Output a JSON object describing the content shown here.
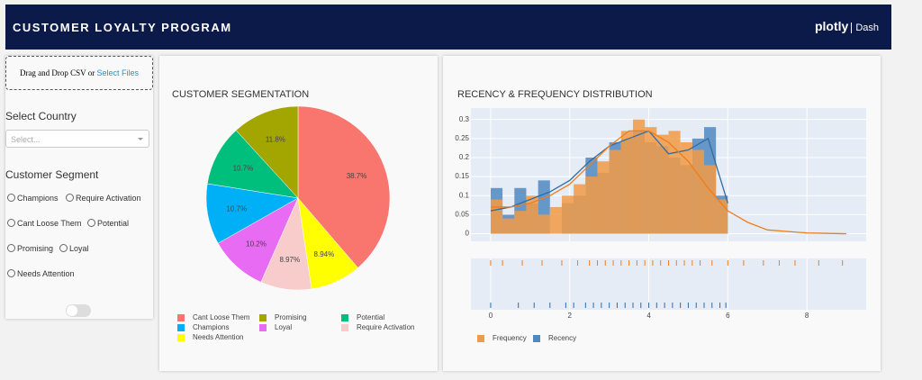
{
  "header": {
    "title": "CUSTOMER LOYALTY PROGRAM",
    "brand": "plotly",
    "product": "Dash"
  },
  "upload": {
    "text": "Drag and Drop CSV or",
    "link": "Select Files"
  },
  "filters": {
    "country_label": "Select Country",
    "country_placeholder": "Select...",
    "segment_label": "Customer Segment",
    "segment_options": [
      "Champions",
      "Require Activation",
      "Cant Loose Them",
      "Potential",
      "Promising",
      "Loyal",
      "Needs Attention"
    ]
  },
  "chart_data": [
    {
      "type": "pie",
      "title": "CUSTOMER SEGMENTATION",
      "categories": [
        "Cant Loose Them",
        "Promising",
        "Potential",
        "Champions",
        "Loyal",
        "Require Activation",
        "Needs Attention"
      ],
      "values": [
        38.7,
        11.8,
        10.7,
        10.7,
        10.2,
        8.97,
        8.94
      ],
      "value_labels": [
        "38.7%",
        "11.8%",
        "10.7%",
        "10.7%",
        "10.2%",
        "8.97%",
        "8.94%"
      ],
      "colors": [
        "#f8766d",
        "#a3a500",
        "#00bf7d",
        "#00b0f6",
        "#e76bf3",
        "#f9cccc",
        "#ffff00"
      ]
    },
    {
      "type": "histogram",
      "title": "RECENCY & FREQUENCY DISTRIBUTION",
      "bins": [
        0,
        0.3,
        0.6,
        0.9,
        1.2,
        1.5,
        1.8,
        2.1,
        2.4,
        2.7,
        3,
        3.3,
        3.6,
        3.9,
        4.2,
        4.5,
        4.8,
        5.1,
        5.4,
        5.7,
        6
      ],
      "kde_x": [
        0,
        0.5,
        1,
        1.5,
        2,
        2.5,
        3,
        3.5,
        4,
        4.5,
        5,
        5.5,
        6,
        6.5,
        7,
        8,
        9
      ],
      "series": [
        {
          "name": "Recency",
          "color": "#4f88c0",
          "line_color": "#2e6ca4",
          "values": [
            0.12,
            0.05,
            0.12,
            0.08,
            0.14,
            0,
            0.08,
            0.1,
            0.2,
            0.16,
            0.24,
            0.25,
            0.27,
            0.24,
            0.23,
            0.2,
            0.18,
            0.25,
            0.28,
            0.1
          ],
          "kde": [
            0.06,
            0.07,
            0.09,
            0.11,
            0.14,
            0.19,
            0.23,
            0.25,
            0.27,
            0.21,
            0.22,
            0.25,
            0.08,
            null,
            null,
            null,
            null
          ],
          "rug": [
            0,
            0.7,
            1.1,
            1.5,
            1.9,
            2.1,
            2.4,
            2.6,
            2.8,
            3,
            3.2,
            3.4,
            3.6,
            3.8,
            4,
            4.2,
            4.4,
            4.6,
            4.8,
            5,
            5.2,
            5.4,
            5.6,
            5.8,
            5.95
          ]
        },
        {
          "name": "Frequency",
          "color": "#f39a44",
          "line_color": "#ee7d1c",
          "values": [
            0.09,
            0.04,
            0.06,
            0.1,
            0.05,
            0.07,
            0.1,
            0.13,
            0.15,
            0.19,
            0.22,
            0.27,
            0.3,
            0.28,
            0.26,
            0.27,
            0.24,
            0.22,
            0.18,
            0.09
          ],
          "kde": [
            0.07,
            0.07,
            0.08,
            0.1,
            0.13,
            0.18,
            0.23,
            0.27,
            0.27,
            0.24,
            0.19,
            0.12,
            0.06,
            0.03,
            0.01,
            0.002,
            0
          ],
          "rug": [
            0,
            0.3,
            0.8,
            1.3,
            1.8,
            2.2,
            2.5,
            2.7,
            2.9,
            3.1,
            3.3,
            3.5,
            3.7,
            3.9,
            4.1,
            4.3,
            4.5,
            4.7,
            4.9,
            5.1,
            5.3,
            5.6,
            6,
            6.4,
            6.9,
            7.3,
            7.7,
            8.3,
            8.9
          ]
        }
      ],
      "xlim": [
        -0.5,
        9.5
      ],
      "ylim": [
        -0.02,
        0.33
      ],
      "xticks": [
        0,
        2,
        4,
        6,
        8
      ],
      "yticks": [
        0,
        0.05,
        0.1,
        0.15,
        0.2,
        0.25,
        0.3
      ],
      "grid": true
    }
  ]
}
